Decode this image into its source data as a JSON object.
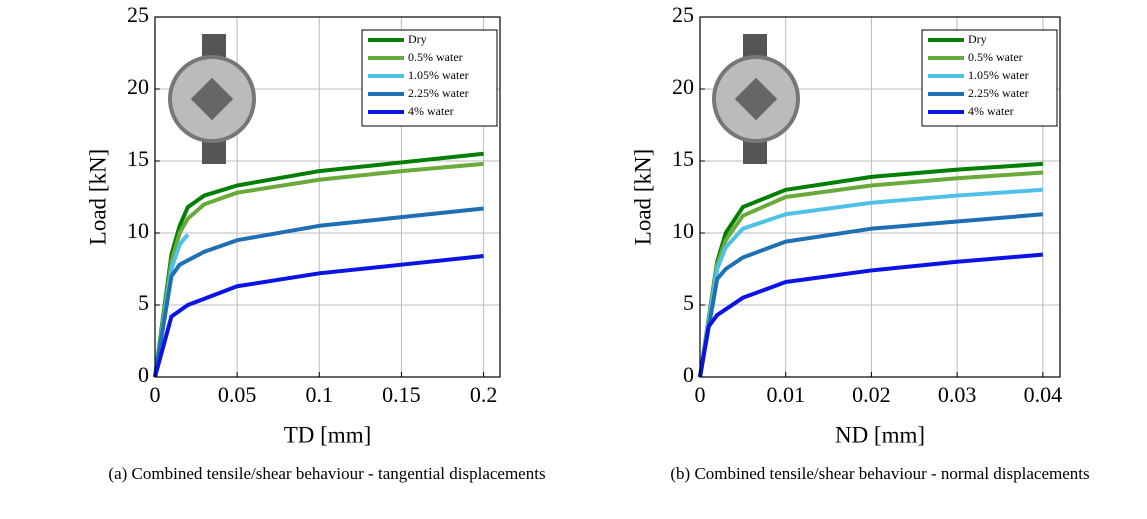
{
  "chart_data": [
    {
      "type": "line",
      "xlabel": "TD [mm]",
      "ylabel": "Load [kN]",
      "caption": "(a) Combined tensile/shear behaviour - tangential displacements",
      "xlim": [
        0,
        0.21
      ],
      "ylim": [
        0,
        25
      ],
      "xticks": [
        0,
        0.05,
        0.1,
        0.15,
        0.2
      ],
      "yticks": [
        0,
        5,
        10,
        15,
        20,
        25
      ],
      "grid": true,
      "legend": "upper right",
      "series": [
        {
          "name": "Dry",
          "color": "#007f00",
          "x": [
            0,
            0.01,
            0.015,
            0.02,
            0.03,
            0.05,
            0.1,
            0.15,
            0.2
          ],
          "values": [
            0,
            8.5,
            10.5,
            11.8,
            12.6,
            13.3,
            14.3,
            14.9,
            15.5
          ]
        },
        {
          "name": "0.5% water",
          "color": "#6aaa3a",
          "x": [
            0,
            0.01,
            0.015,
            0.02,
            0.03,
            0.05,
            0.1,
            0.15,
            0.2
          ],
          "values": [
            0,
            8,
            10,
            11,
            12,
            12.8,
            13.7,
            14.3,
            14.8
          ]
        },
        {
          "name": "1.05% water",
          "color": "#4fc1e9",
          "x": [
            0,
            0.01,
            0.015,
            0.02
          ],
          "values": [
            0,
            7.5,
            9.2,
            9.9
          ]
        },
        {
          "name": "2.25% water",
          "color": "#1f6fb4",
          "x": [
            0,
            0.01,
            0.015,
            0.03,
            0.05,
            0.1,
            0.15,
            0.2
          ],
          "values": [
            0,
            7,
            7.8,
            8.7,
            9.5,
            10.5,
            11.1,
            11.7
          ]
        },
        {
          "name": "4% water",
          "color": "#0a14e6",
          "x": [
            0,
            0.01,
            0.02,
            0.05,
            0.1,
            0.15,
            0.2
          ],
          "values": [
            0,
            4.2,
            5,
            6.3,
            7.2,
            7.8,
            8.4
          ]
        }
      ]
    },
    {
      "type": "line",
      "xlabel": "ND [mm]",
      "ylabel": "Load [kN]",
      "caption": "(b) Combined tensile/shear behaviour - normal displacements",
      "xlim": [
        0,
        0.042
      ],
      "ylim": [
        0,
        25
      ],
      "xticks": [
        0,
        0.01,
        0.02,
        0.03,
        0.04
      ],
      "yticks": [
        0,
        5,
        10,
        15,
        20,
        25
      ],
      "grid": true,
      "legend": "upper right",
      "series": [
        {
          "name": "Dry",
          "color": "#007f00",
          "x": [
            0,
            0.002,
            0.003,
            0.005,
            0.01,
            0.02,
            0.03,
            0.04
          ],
          "values": [
            0,
            8,
            10,
            11.8,
            13,
            13.9,
            14.4,
            14.8
          ]
        },
        {
          "name": "0.5% water",
          "color": "#6aaa3a",
          "x": [
            0,
            0.002,
            0.003,
            0.005,
            0.01,
            0.02,
            0.03,
            0.04
          ],
          "values": [
            0,
            7.8,
            9.5,
            11.2,
            12.5,
            13.3,
            13.8,
            14.2
          ]
        },
        {
          "name": "1.05% water",
          "color": "#4fc1e9",
          "x": [
            0,
            0.002,
            0.003,
            0.005,
            0.01,
            0.02,
            0.03,
            0.04
          ],
          "values": [
            0,
            7.5,
            9,
            10.3,
            11.3,
            12.1,
            12.6,
            13
          ]
        },
        {
          "name": "2.25% water",
          "color": "#1f6fb4",
          "x": [
            0,
            0.002,
            0.003,
            0.005,
            0.01,
            0.02,
            0.03,
            0.04
          ],
          "values": [
            0,
            6.8,
            7.5,
            8.3,
            9.4,
            10.3,
            10.8,
            11.3
          ]
        },
        {
          "name": "4% water",
          "color": "#0a14e6",
          "x": [
            0,
            0.001,
            0.002,
            0.005,
            0.01,
            0.02,
            0.03,
            0.04
          ],
          "values": [
            0,
            3.5,
            4.3,
            5.5,
            6.6,
            7.4,
            8,
            8.5
          ]
        }
      ]
    }
  ]
}
